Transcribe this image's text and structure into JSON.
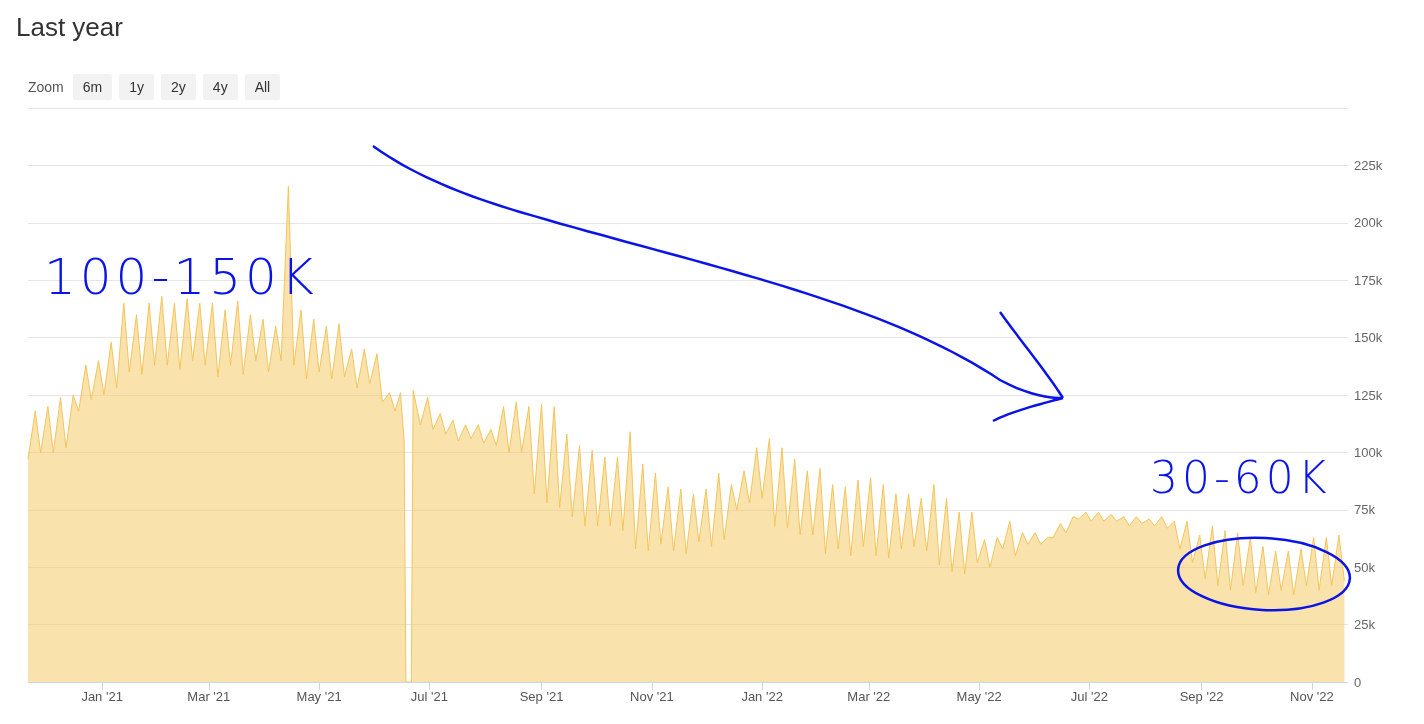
{
  "chart_data": {
    "type": "area",
    "title": "Last year",
    "annotations": [
      "Zoom",
      "6m",
      "1y",
      "2y",
      "4y",
      "All",
      "100-150K",
      "30-60K"
    ],
    "x": [
      "2020-11-21",
      "2020-11-25",
      "2020-11-28",
      "2020-12-02",
      "2020-12-05",
      "2020-12-09",
      "2020-12-12",
      "2020-12-16",
      "2020-12-19",
      "2020-12-23",
      "2020-12-26",
      "2020-12-30",
      "2021-01-02",
      "2021-01-06",
      "2021-01-09",
      "2021-01-13",
      "2021-01-16",
      "2021-01-20",
      "2021-01-23",
      "2021-01-27",
      "2021-01-30",
      "2021-02-03",
      "2021-02-06",
      "2021-02-10",
      "2021-02-13",
      "2021-02-17",
      "2021-02-20",
      "2021-02-24",
      "2021-02-27",
      "2021-03-03",
      "2021-03-06",
      "2021-03-10",
      "2021-03-13",
      "2021-03-17",
      "2021-03-20",
      "2021-03-24",
      "2021-03-27",
      "2021-03-31",
      "2021-04-03",
      "2021-04-07",
      "2021-04-10",
      "2021-04-14",
      "2021-04-17",
      "2021-04-21",
      "2021-04-24",
      "2021-04-28",
      "2021-05-01",
      "2021-05-05",
      "2021-05-08",
      "2021-05-12",
      "2021-05-15",
      "2021-05-19",
      "2021-05-22",
      "2021-05-26",
      "2021-05-29",
      "2021-06-02",
      "2021-06-05",
      "2021-06-09",
      "2021-06-12",
      "2021-06-15",
      "2021-06-17",
      "2021-06-18",
      "2021-06-21",
      "2021-06-22",
      "2021-06-26",
      "2021-06-30",
      "2021-07-03",
      "2021-07-07",
      "2021-07-10",
      "2021-07-14",
      "2021-07-17",
      "2021-07-21",
      "2021-07-24",
      "2021-07-28",
      "2021-07-31",
      "2021-08-04",
      "2021-08-07",
      "2021-08-11",
      "2021-08-14",
      "2021-08-18",
      "2021-08-21",
      "2021-08-25",
      "2021-08-28",
      "2021-09-01",
      "2021-09-04",
      "2021-09-08",
      "2021-09-11",
      "2021-09-15",
      "2021-09-18",
      "2021-09-22",
      "2021-09-25",
      "2021-09-29",
      "2021-10-02",
      "2021-10-06",
      "2021-10-09",
      "2021-10-13",
      "2021-10-16",
      "2021-10-20",
      "2021-10-23",
      "2021-10-27",
      "2021-10-30",
      "2021-11-03",
      "2021-11-06",
      "2021-11-10",
      "2021-11-13",
      "2021-11-17",
      "2021-11-20",
      "2021-11-24",
      "2021-11-27",
      "2021-12-01",
      "2021-12-04",
      "2021-12-08",
      "2021-12-11",
      "2021-12-15",
      "2021-12-18",
      "2021-12-22",
      "2021-12-25",
      "2021-12-29",
      "2022-01-01",
      "2022-01-05",
      "2022-01-08",
      "2022-01-12",
      "2022-01-15",
      "2022-01-19",
      "2022-01-22",
      "2022-01-26",
      "2022-01-29",
      "2022-02-02",
      "2022-02-05",
      "2022-02-09",
      "2022-02-12",
      "2022-02-16",
      "2022-02-19",
      "2022-02-23",
      "2022-02-26",
      "2022-03-02",
      "2022-03-05",
      "2022-03-09",
      "2022-03-12",
      "2022-03-16",
      "2022-03-19",
      "2022-03-23",
      "2022-03-26",
      "2022-03-30",
      "2022-04-02",
      "2022-04-06",
      "2022-04-09",
      "2022-04-13",
      "2022-04-16",
      "2022-04-20",
      "2022-04-23",
      "2022-04-27",
      "2022-04-30",
      "2022-05-04",
      "2022-05-07",
      "2022-05-11",
      "2022-05-14",
      "2022-05-18",
      "2022-05-21",
      "2022-05-25",
      "2022-05-28",
      "2022-06-01",
      "2022-06-04",
      "2022-06-08",
      "2022-06-11",
      "2022-06-15",
      "2022-06-18",
      "2022-06-22",
      "2022-06-25",
      "2022-06-29",
      "2022-07-02",
      "2022-07-06",
      "2022-07-09",
      "2022-07-13",
      "2022-07-16",
      "2022-07-20",
      "2022-07-23",
      "2022-07-27",
      "2022-07-30",
      "2022-08-03",
      "2022-08-06",
      "2022-08-10",
      "2022-08-13",
      "2022-08-17",
      "2022-08-20",
      "2022-08-24",
      "2022-08-27",
      "2022-08-31",
      "2022-09-03",
      "2022-09-07",
      "2022-09-10",
      "2022-09-14",
      "2022-09-17",
      "2022-09-21",
      "2022-09-24",
      "2022-09-28",
      "2022-10-01",
      "2022-10-05",
      "2022-10-08",
      "2022-10-12",
      "2022-10-15",
      "2022-10-19",
      "2022-10-22",
      "2022-10-26",
      "2022-10-29",
      "2022-11-02",
      "2022-11-05",
      "2022-11-09",
      "2022-11-12",
      "2022-11-16",
      "2022-11-19"
    ],
    "series": [
      {
        "color": "#f3c55a",
        "values": [
          97000,
          118000,
          100000,
          120000,
          100000,
          124000,
          102000,
          125000,
          118000,
          138000,
          123000,
          140000,
          125000,
          148000,
          128000,
          165000,
          135000,
          160000,
          134000,
          165000,
          138000,
          168000,
          138000,
          165000,
          136000,
          167000,
          140000,
          165000,
          138000,
          165000,
          133000,
          162000,
          138000,
          166000,
          134000,
          160000,
          140000,
          158000,
          135000,
          155000,
          140000,
          216000,
          138000,
          162000,
          132000,
          158000,
          135000,
          155000,
          132000,
          156000,
          133000,
          145000,
          128000,
          145000,
          130000,
          143000,
          122000,
          126000,
          118000,
          126000,
          105000,
          0,
          0,
          127000,
          112000,
          124000,
          110000,
          117000,
          108000,
          114000,
          105000,
          112000,
          106000,
          112000,
          104000,
          110000,
          103000,
          120000,
          100000,
          122000,
          100000,
          120000,
          82000,
          121000,
          78000,
          120000,
          76000,
          108000,
          72000,
          103000,
          68000,
          101000,
          68000,
          98000,
          68000,
          98000,
          66000,
          109000,
          58000,
          95000,
          57000,
          91000,
          60000,
          85000,
          57000,
          84000,
          56000,
          82000,
          61000,
          84000,
          59000,
          91000,
          62000,
          86000,
          75000,
          92000,
          78000,
          102000,
          80000,
          106000,
          68000,
          102000,
          67000,
          97000,
          64000,
          92000,
          64000,
          93000,
          56000,
          86000,
          58000,
          85000,
          55000,
          88000,
          59000,
          89000,
          55000,
          86000,
          54000,
          82000,
          58000,
          82000,
          59000,
          80000,
          57000,
          86000,
          51000,
          80000,
          48000,
          74000,
          47000,
          74000,
          52000,
          62000,
          50000,
          63000,
          58000,
          70000,
          55000,
          65000,
          60000,
          65000,
          60000,
          63000,
          63000,
          69000,
          65000,
          72000,
          71000,
          74000,
          70000,
          74000,
          70000,
          73000,
          70000,
          72000,
          68000,
          72000,
          69000,
          71000,
          68000,
          72000,
          67000,
          70000,
          58000,
          70000,
          52000,
          64000,
          45000,
          68000,
          42000,
          66000,
          40000,
          65000,
          42000,
          63000,
          39000,
          59000,
          38000,
          57000,
          40000,
          57000,
          38000,
          58000,
          42000,
          63000,
          40000,
          63000,
          42000,
          64000,
          44000
        ]
      }
    ],
    "xlim": [
      "2020-11-21",
      "2022-11-21"
    ],
    "xticks": [
      {
        "value": "2021-01",
        "label": "Jan '21"
      },
      {
        "value": "2021-03",
        "label": "Mar '21"
      },
      {
        "value": "2021-05",
        "label": "May '21"
      },
      {
        "value": "2021-07",
        "label": "Jul '21"
      },
      {
        "value": "2021-09",
        "label": "Sep '21"
      },
      {
        "value": "2021-11",
        "label": "Nov '21"
      },
      {
        "value": "2022-01",
        "label": "Jan '22"
      },
      {
        "value": "2022-03",
        "label": "Mar '22"
      },
      {
        "value": "2022-05",
        "label": "May '22"
      },
      {
        "value": "2022-07",
        "label": "Jul '22"
      },
      {
        "value": "2022-09",
        "label": "Sep '22"
      },
      {
        "value": "2022-11",
        "label": "Nov '22"
      }
    ],
    "ylim": [
      0,
      250000
    ],
    "yticks": [
      0,
      {
        "value": 25000,
        "label": "25k"
      },
      {
        "value": 50000,
        "label": "50k"
      },
      {
        "value": 75000,
        "label": "75k"
      },
      {
        "value": 100000,
        "label": "100k"
      },
      {
        "value": 125000,
        "label": "125k"
      },
      {
        "value": 150000,
        "label": "150k"
      },
      {
        "value": 175000,
        "label": "175k"
      },
      {
        "value": 200000,
        "label": "200k"
      },
      {
        "value": 225000,
        "label": "225k"
      },
      {
        "value": 250000,
        "label": null
      }
    ],
    "grid": "y",
    "marker": "none",
    "line_style": "solid"
  }
}
